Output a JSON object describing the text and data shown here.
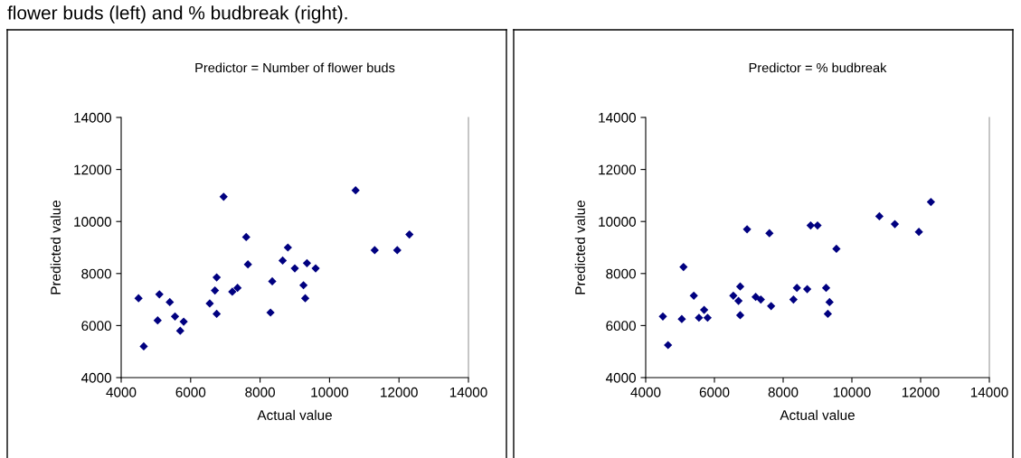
{
  "chart_data": [
    {
      "type": "scatter",
      "title": "Predictor = Number of flower buds",
      "xlabel": "Actual value",
      "ylabel": "Predicted value",
      "annotations": [
        "flower buds (left) and % budbreak (right)."
      ],
      "marker": "diamond",
      "grid": false,
      "legend": false,
      "xlim": [
        4000,
        14000
      ],
      "xticks": [
        4000,
        6000,
        8000,
        10000,
        12000,
        14000
      ],
      "ylim": [
        4000,
        14000
      ],
      "yticks": [
        4000,
        6000,
        8000,
        10000,
        12000,
        14000
      ],
      "series": [
        {
          "color": "#000080",
          "x": [
            4500,
            4650,
            5050,
            5100,
            5400,
            5550,
            5700,
            5800,
            6550,
            6700,
            6750,
            6750,
            6950,
            7200,
            7350,
            7600,
            7650,
            8300,
            8350,
            8650,
            8800,
            9000,
            9250,
            9300,
            9350,
            9600,
            10750,
            11300,
            11950,
            12300
          ],
          "values": [
            7050,
            5200,
            6200,
            7200,
            6900,
            6350,
            5800,
            6150,
            6850,
            7350,
            7850,
            6450,
            10950,
            7300,
            7450,
            9400,
            8350,
            6500,
            7700,
            8500,
            9000,
            8200,
            7550,
            7050,
            8400,
            8200,
            11200,
            8900,
            8900,
            9500
          ]
        }
      ]
    },
    {
      "type": "scatter",
      "title": "Predictor = % budbreak",
      "xlabel": "Actual value",
      "ylabel": "Predicted value",
      "marker": "diamond",
      "grid": false,
      "legend": false,
      "xlim": [
        4000,
        14000
      ],
      "xticks": [
        4000,
        6000,
        8000,
        10000,
        12000,
        14000
      ],
      "ylim": [
        4000,
        14000
      ],
      "yticks": [
        4000,
        6000,
        8000,
        10000,
        12000,
        14000
      ],
      "series": [
        {
          "color": "#000080",
          "x": [
            4500,
            4650,
            5050,
            5100,
            5400,
            5550,
            5700,
            5800,
            6550,
            6700,
            6750,
            6750,
            6950,
            7200,
            7350,
            7600,
            7650,
            8300,
            8400,
            8700,
            8800,
            9000,
            9250,
            9300,
            9350,
            9550,
            10800,
            11250,
            11950,
            12300
          ],
          "values": [
            6350,
            5250,
            6250,
            8250,
            7150,
            6300,
            6600,
            6300,
            7150,
            6950,
            7500,
            6400,
            9700,
            7100,
            7000,
            9550,
            6750,
            7000,
            7450,
            7400,
            9850,
            9850,
            7450,
            6450,
            6900,
            8950,
            10200,
            9900,
            9600,
            10750
          ]
        }
      ]
    }
  ]
}
